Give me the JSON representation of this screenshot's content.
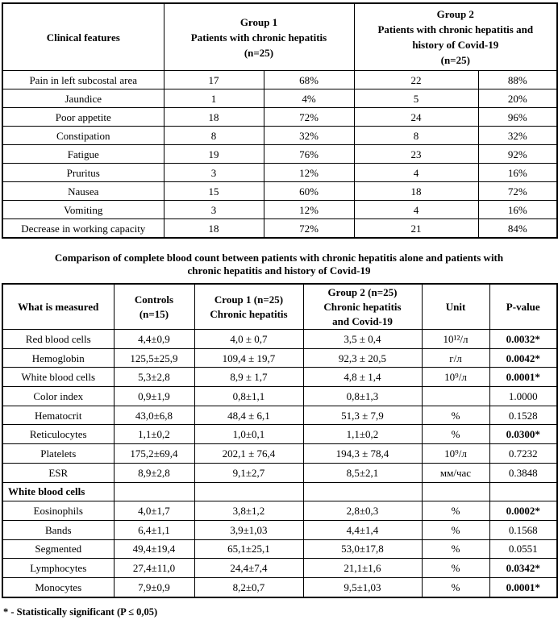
{
  "page": {
    "title": "Comparison of complete blood count between patients with chronic hepatitis alone and patients with\nchronic hepatitis and history of Covid-19",
    "footnote": "* - Statistically significant (P ≤ 0,05)"
  },
  "clinical_table": {
    "header": {
      "features": "Clinical features",
      "group1": "Group 1\nPatients with chronic hepatitis\n(n=25)",
      "group2": "Group 2\nPatients with chronic hepatitis and\nhistory of Covid-19\n(n=25)"
    },
    "rows": [
      [
        "Pain in left subcostal area",
        "17",
        "68%",
        "22",
        "88%"
      ],
      [
        "Jaundice",
        "1",
        "4%",
        "5",
        "20%"
      ],
      [
        "Poor appetite",
        "18",
        "72%",
        "24",
        "96%"
      ],
      [
        "Constipation",
        "8",
        "32%",
        "8",
        "32%"
      ],
      [
        "Fatigue",
        "19",
        "76%",
        "23",
        "92%"
      ],
      [
        "Pruritus",
        "3",
        "12%",
        "4",
        "16%"
      ],
      [
        "Nausea",
        "15",
        "60%",
        "18",
        "72%"
      ],
      [
        "Vomiting",
        "3",
        "12%",
        "4",
        "16%"
      ],
      [
        "Decrease in working capacity",
        "18",
        "72%",
        "21",
        "84%"
      ]
    ]
  },
  "blood_table": {
    "headers": {
      "measured": "What is measured",
      "controls": "Controls\n(n=15)",
      "group1": "Croup 1 (n=25)\nChronic hepatitis",
      "group2": "Group 2 (n=25)\nChronic hepatitis\nand Covid-19",
      "unit": "Unit",
      "pvalue": "P-value"
    },
    "rows": [
      {
        "label": "Red blood cells",
        "controls": "4,4±0,9",
        "group1": "4,0 ± 0,7",
        "group2": "3,5 ± 0,4",
        "unit": "10¹²/л",
        "p": "0.0032*",
        "significant": true
      },
      {
        "label": "Hemoglobin",
        "controls": "125,5±25,9",
        "group1": "109,4 ± 19,7",
        "group2": "92,3 ± 20,5",
        "unit": "г/л",
        "p": "0.0042*",
        "significant": true
      },
      {
        "label": "White blood cells",
        "controls": "5,3±2,8",
        "group1": "8,9 ± 1,7",
        "group2": "4,8 ± 1,4",
        "unit": "10⁹/л",
        "p": "0.0001*",
        "significant": true
      },
      {
        "label": "Color index",
        "controls": "0,9±1,9",
        "group1": "0,8±1,1",
        "group2": "0,8±1,3",
        "unit": "",
        "p": "1.0000",
        "significant": false
      },
      {
        "label": "Hematocrit",
        "controls": "43,0±6,8",
        "group1": "48,4 ± 6,1",
        "group2": "51,3 ± 7,9",
        "unit": "%",
        "p": "0.1528",
        "significant": false
      },
      {
        "label": "Reticulocytes",
        "controls": "1,1±0,2",
        "group1": "1,0±0,1",
        "group2": "1,1±0,2",
        "unit": "%",
        "p": "0.0300*",
        "significant": true
      },
      {
        "label": "Platelets",
        "controls": "175,2±69,4",
        "group1": "202,1 ± 76,4",
        "group2": "194,3 ± 78,4",
        "unit": "10⁹/л",
        "p": "0.7232",
        "significant": false
      },
      {
        "label": "ESR",
        "controls": "8,9±2,8",
        "group1": "9,1±2,7",
        "group2": "8,5±2,1",
        "unit": "мм/час",
        "p": "0.3848",
        "significant": false
      },
      {
        "section": "White blood cells"
      },
      {
        "label": "Eosinophils",
        "controls": "4,0±1,7",
        "group1": "3,8±1,2",
        "group2": "2,8±0,3",
        "unit": "%",
        "p": "0.0002*",
        "significant": true
      },
      {
        "label": "Bands",
        "controls": "6,4±1,1",
        "group1": "3,9±1,03",
        "group2": "4,4±1,4",
        "unit": "%",
        "p": "0.1568",
        "significant": false
      },
      {
        "label": "Segmented",
        "controls": "49,4±19,4",
        "group1": "65,1±25,1",
        "group2": "53,0±17,8",
        "unit": "%",
        "p": "0.0551",
        "significant": false
      },
      {
        "label": "Lymphocytes",
        "controls": "27,4±11,0",
        "group1": "24,4±7,4",
        "group2": "21,1±1,6",
        "unit": "%",
        "p": "0.0342*",
        "significant": true
      },
      {
        "label": "Monocytes",
        "controls": "7,9±0,9",
        "group1": "8,2±0,7",
        "group2": "9,5±1,03",
        "unit": "%",
        "p": "0.0001*",
        "significant": true
      }
    ]
  }
}
